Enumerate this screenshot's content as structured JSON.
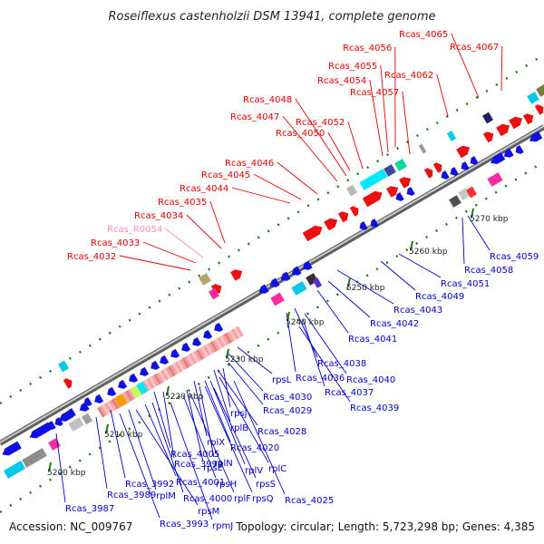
{
  "title": "Roseiflexus castenholzii DSM 13941, complete genome",
  "footer": {
    "accession": "Accession: NC_009767",
    "summary": "Topology: circular; Length: 5,723,298 bp; Genes: 4,385"
  },
  "colors": {
    "upper_label": "#e00000",
    "lower_label": "#0000cc",
    "rna_label": "#ff8fb4",
    "backbone": "#8c8c8c",
    "tick": "#1e7a1e"
  },
  "ticks": [
    {
      "label": "5200 kbp"
    },
    {
      "label": "5210 kbp"
    },
    {
      "label": "5220 kbp"
    },
    {
      "label": "5230 kbp"
    },
    {
      "label": "5240 kbp"
    },
    {
      "label": "5250 kbp"
    },
    {
      "label": "5260 kbp"
    },
    {
      "label": "5270 kbp"
    }
  ],
  "upper_labels": [
    {
      "text": "Rcas_4065",
      "kind": "gene"
    },
    {
      "text": "Rcas_4067",
      "kind": "gene"
    },
    {
      "text": "Rcas_4056",
      "kind": "gene"
    },
    {
      "text": "Rcas_4055",
      "kind": "gene"
    },
    {
      "text": "Rcas_4054",
      "kind": "gene"
    },
    {
      "text": "Rcas_4062",
      "kind": "gene"
    },
    {
      "text": "Rcas_4057",
      "kind": "gene"
    },
    {
      "text": "Rcas_4048",
      "kind": "gene"
    },
    {
      "text": "Rcas_4047",
      "kind": "gene"
    },
    {
      "text": "Rcas_4052",
      "kind": "gene"
    },
    {
      "text": "Rcas_4050",
      "kind": "gene"
    },
    {
      "text": "Rcas_4046",
      "kind": "gene"
    },
    {
      "text": "Rcas_4045",
      "kind": "gene"
    },
    {
      "text": "Rcas_4044",
      "kind": "gene"
    },
    {
      "text": "Rcas_4035",
      "kind": "gene"
    },
    {
      "text": "Rcas_4034",
      "kind": "gene"
    },
    {
      "text": "Rcas_R0054",
      "kind": "rna"
    },
    {
      "text": "Rcas_4033",
      "kind": "gene"
    },
    {
      "text": "Rcas_4032",
      "kind": "gene"
    }
  ],
  "lower_labels": [
    {
      "text": "Rcas_4059"
    },
    {
      "text": "Rcas_4058"
    },
    {
      "text": "Rcas_4051"
    },
    {
      "text": "Rcas_4049"
    },
    {
      "text": "Rcas_4043"
    },
    {
      "text": "Rcas_4042"
    },
    {
      "text": "Rcas_4041"
    },
    {
      "text": "Rcas_4038"
    },
    {
      "text": "Rcas_4036"
    },
    {
      "text": "Rcas_4040"
    },
    {
      "text": "rpsL"
    },
    {
      "text": "Rcas_4037"
    },
    {
      "text": "Rcas_4030"
    },
    {
      "text": "Rcas_4039"
    },
    {
      "text": "Rcas_4029"
    },
    {
      "text": "rpsJ"
    },
    {
      "text": "Rcas_4028"
    },
    {
      "text": "rplB"
    },
    {
      "text": "rplX"
    },
    {
      "text": "Rcas_4020"
    },
    {
      "text": "Rcas_4005"
    },
    {
      "text": "Rcas_3999"
    },
    {
      "text": "rpsE"
    },
    {
      "text": "rplN"
    },
    {
      "text": "rplV"
    },
    {
      "text": "rplC"
    },
    {
      "text": "Rcas_3992"
    },
    {
      "text": "Rcas_4001"
    },
    {
      "text": "rpsH"
    },
    {
      "text": "rpsS"
    },
    {
      "text": "Rcas_3989"
    },
    {
      "text": "rplM"
    },
    {
      "text": "Rcas_4000"
    },
    {
      "text": "rplF"
    },
    {
      "text": "rpsQ"
    },
    {
      "text": "Rcas_4025"
    },
    {
      "text": "Rcas_3987"
    },
    {
      "text": "rpsM"
    },
    {
      "text": "Rcas_3993"
    },
    {
      "text": "rpmJ"
    }
  ]
}
